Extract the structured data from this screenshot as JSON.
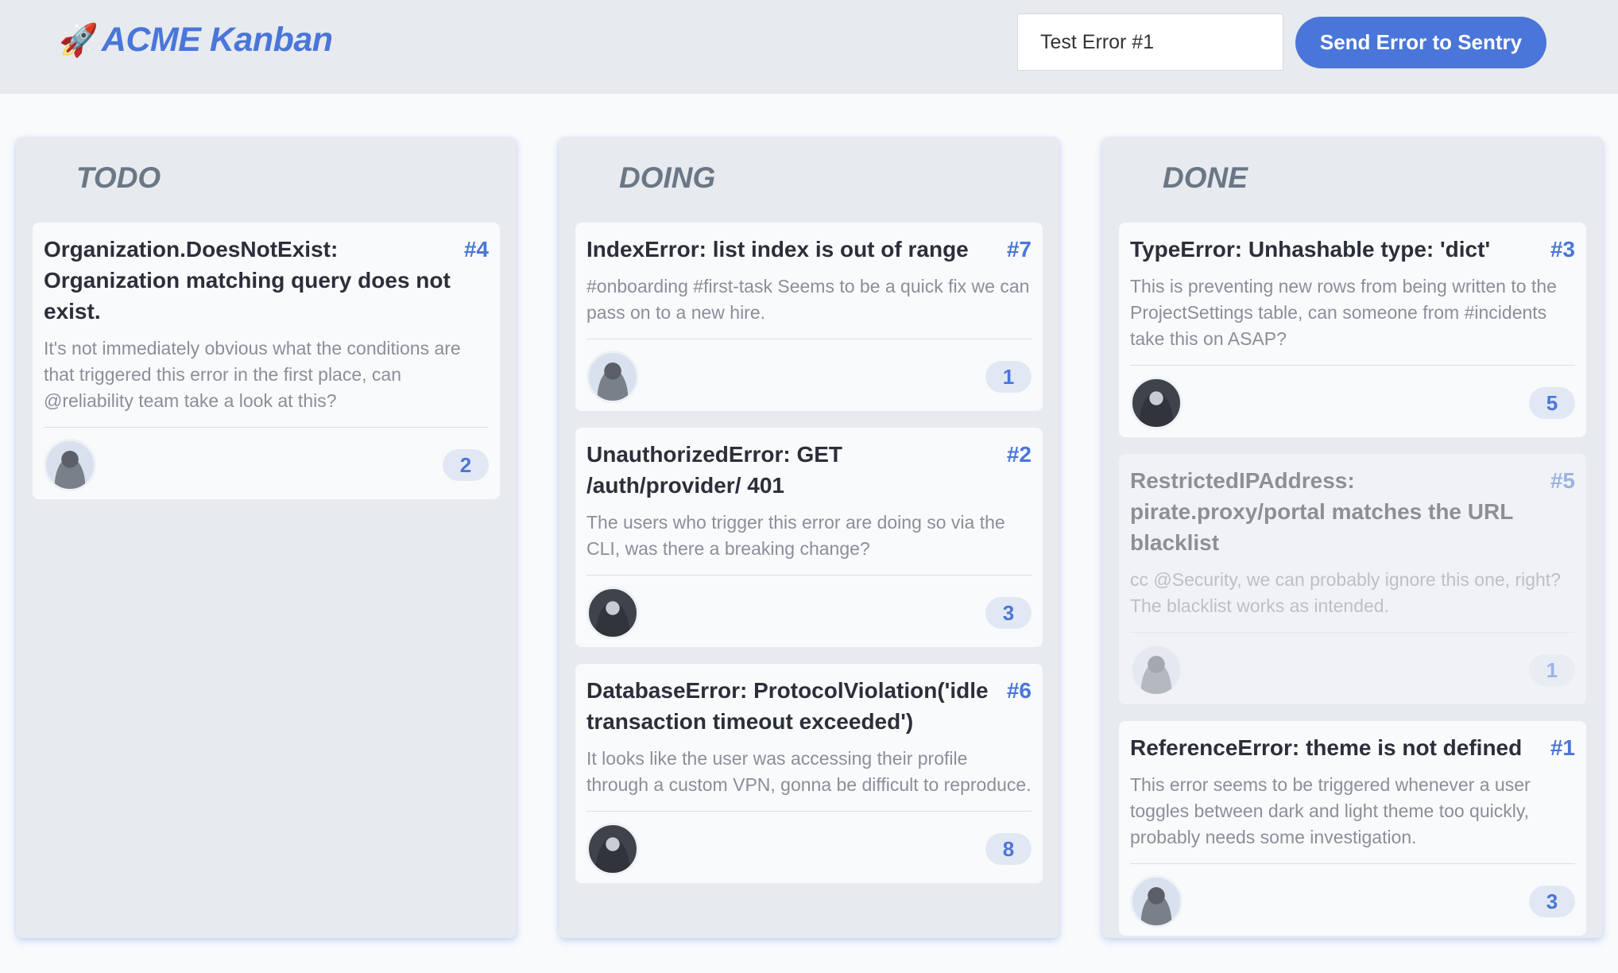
{
  "header": {
    "logo_emoji": "🚀",
    "title": "ACME Kanban",
    "error_input_value": "Test Error #1",
    "send_button": "Send Error to Sentry",
    "accent": "#4a76d9"
  },
  "columns": [
    {
      "title": "TODO",
      "cards": [
        {
          "title": "Organization.DoesNotExist: Organization matching query does not exist.",
          "id": "#4",
          "description": "It's not immediately obvious what the conditions are that triggered this error in the first place, can @reliability team take a look at this?",
          "count": "2",
          "avatar": "avatar-woman"
        }
      ]
    },
    {
      "title": "DOING",
      "cards": [
        {
          "title": "IndexError: list index is out of range",
          "id": "#7",
          "description": "#onboarding #first-task Seems to be a quick fix we can pass on to a new hire.",
          "count": "1",
          "avatar": "avatar-woman"
        },
        {
          "title": "UnauthorizedError: GET /auth/provider/ 401",
          "id": "#2",
          "description": "The users who trigger this error are doing so via the CLI, was there a breaking change?",
          "count": "3",
          "avatar": "avatar-man-cap"
        },
        {
          "title": "DatabaseError: ProtocolViolation('idle transaction timeout exceeded')",
          "id": "#6",
          "description": "It looks like the user was accessing their profile through a custom VPN, gonna be difficult to reproduce.",
          "count": "8",
          "avatar": "avatar-man"
        }
      ]
    },
    {
      "title": "DONE",
      "cards": [
        {
          "title": "TypeError: Unhashable type: 'dict'",
          "id": "#3",
          "description": "This is preventing new rows from being written to the ProjectSettings table, can someone from #incidents take this on ASAP?",
          "count": "5",
          "avatar": "avatar-bearded-man"
        },
        {
          "title": "RestrictedIPAddress: pirate.proxy/portal matches the URL blacklist",
          "id": "#5",
          "description": "cc @Security, we can probably ignore this one, right? The blacklist works as intended.",
          "count": "1",
          "avatar": "avatar-man",
          "faded": true
        },
        {
          "title": "ReferenceError: theme is not defined",
          "id": "#1",
          "description": "This error seems to be triggered whenever a user toggles between dark and light theme too quickly, probably needs some investigation.",
          "count": "3",
          "avatar": "avatar-woman"
        }
      ]
    }
  ]
}
